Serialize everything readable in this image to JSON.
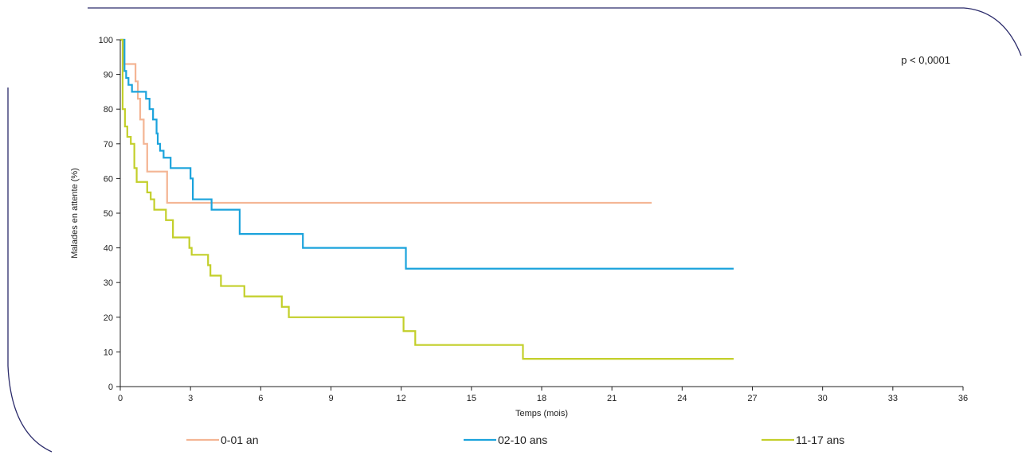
{
  "chart_data": {
    "type": "line",
    "title": "",
    "xlabel": "Temps (mois)",
    "ylabel": "Malades en attente (%)",
    "xlim": [
      0,
      36
    ],
    "ylim": [
      0,
      100
    ],
    "x_ticks": [
      0,
      3,
      6,
      9,
      12,
      15,
      18,
      21,
      24,
      27,
      30,
      33,
      36
    ],
    "y_ticks": [
      0,
      10,
      20,
      30,
      40,
      50,
      60,
      70,
      80,
      90,
      100
    ],
    "annotation": "p < 0,0001",
    "legend_position": "bottom",
    "grid": false,
    "series": [
      {
        "name": "0-01 an",
        "color": "#f4b594",
        "step": true,
        "x": [
          0,
          0.15,
          0.65,
          0.75,
          0.85,
          1.0,
          1.15,
          1.25,
          2.0,
          22.7
        ],
        "y": [
          100,
          93,
          88,
          83,
          77,
          70,
          62,
          62,
          53,
          53
        ]
      },
      {
        "name": "02-10 ans",
        "color": "#1ba3dc",
        "step": true,
        "x": [
          0,
          0.18,
          0.25,
          0.35,
          0.5,
          0.75,
          1.1,
          1.25,
          1.4,
          1.55,
          1.6,
          1.7,
          1.85,
          2.15,
          3.0,
          3.1,
          3.9,
          5.1,
          7.8,
          12.2,
          26.2
        ],
        "y": [
          100,
          91,
          89,
          87,
          85,
          85,
          83,
          80,
          77,
          73,
          70,
          68,
          66,
          63,
          60,
          54,
          51,
          44,
          40,
          34,
          34
        ]
      },
      {
        "name": "11-17 ans",
        "color": "#c3cf2a",
        "step": true,
        "x": [
          0,
          0.1,
          0.2,
          0.3,
          0.45,
          0.6,
          0.7,
          0.85,
          1.15,
          1.3,
          1.45,
          1.95,
          2.25,
          2.95,
          3.05,
          3.6,
          3.75,
          3.85,
          4.3,
          5.3,
          6.9,
          7.2,
          12.1,
          12.6,
          17.2,
          26.2
        ],
        "y": [
          100,
          80,
          75,
          72,
          70,
          63,
          59,
          59,
          56,
          54,
          51,
          48,
          43,
          40,
          38,
          38,
          35,
          32,
          29,
          26,
          23,
          20,
          16,
          12,
          8,
          8
        ]
      }
    ]
  }
}
